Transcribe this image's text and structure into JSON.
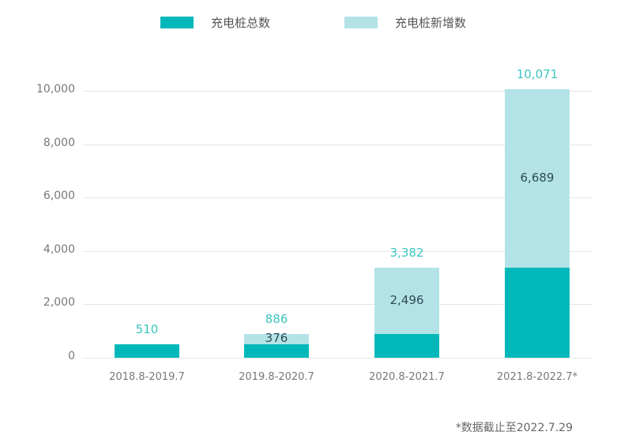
{
  "legend": {
    "total_label": "充电桩总数",
    "new_label": "充电桩新增数"
  },
  "colors": {
    "total": "#00b8ba",
    "new": "#b3e3e7",
    "total_value_text": "#3cc6c0",
    "new_value_text": "#2e4a56"
  },
  "y_ticks": [
    "0",
    "2,000",
    "4,000",
    "6,000",
    "8,000",
    "10,000"
  ],
  "bars": [
    {
      "category": "2018.8-2019.7",
      "base": 510,
      "increment": 0,
      "total_label": "510",
      "increment_label": ""
    },
    {
      "category": "2019.8-2020.7",
      "base": 510,
      "increment": 376,
      "total_label": "886",
      "increment_label": "376"
    },
    {
      "category": "2020.8-2021.7",
      "base": 886,
      "increment": 2496,
      "total_label": "3,382",
      "increment_label": "2,496"
    },
    {
      "category": "2021.8-2022.7*",
      "base": 3382,
      "increment": 6689,
      "total_label": "10,071",
      "increment_label": "6,689"
    }
  ],
  "footnote": "*数据截止至2022.7.29",
  "chart_data": {
    "type": "bar",
    "stacked": true,
    "title": "",
    "xlabel": "",
    "ylabel": "",
    "categories": [
      "2018.8-2019.7",
      "2019.8-2020.7",
      "2020.8-2021.7",
      "2021.8-2022.7*"
    ],
    "series": [
      {
        "name": "充电桩总数",
        "values": [
          510,
          510,
          886,
          3382
        ]
      },
      {
        "name": "充电桩新增数",
        "values": [
          0,
          376,
          2496,
          6689
        ]
      }
    ],
    "totals": [
      510,
      886,
      3382,
      10071
    ],
    "ylim": [
      0,
      10000
    ],
    "yticks": [
      0,
      2000,
      4000,
      6000,
      8000,
      10000
    ],
    "grid": true,
    "legend_position": "top",
    "annotations": [
      "*数据截止至2022.7.29"
    ]
  }
}
